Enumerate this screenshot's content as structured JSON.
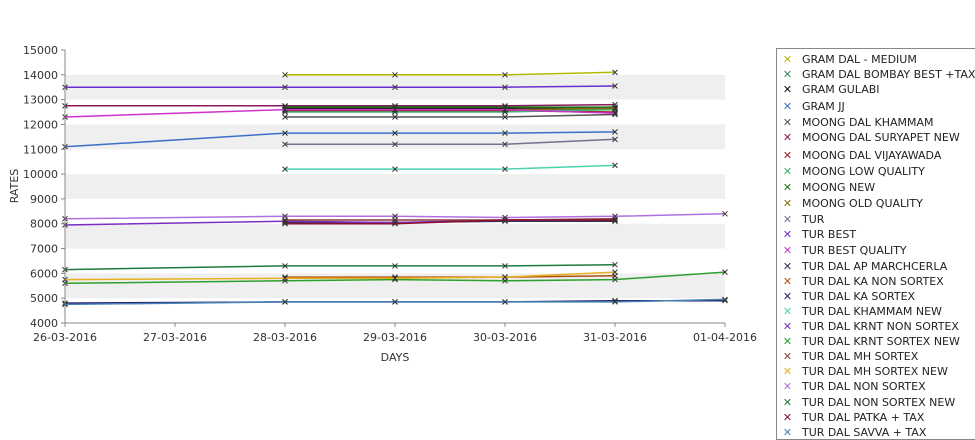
{
  "chart_data": {
    "type": "line",
    "xlabel": "DAYS",
    "ylabel": "RATES",
    "ylim": [
      4000,
      15000
    ],
    "yticks": [
      4000,
      5000,
      6000,
      7000,
      8000,
      9000,
      10000,
      11000,
      12000,
      13000,
      14000,
      15000
    ],
    "categories": [
      "26-03-2016",
      "27-03-2016",
      "28-03-2016",
      "29-03-2016",
      "30-03-2016",
      "31-03-2016",
      "01-04-2016"
    ],
    "grid": "alternating horizontal bands",
    "legend_position": "right",
    "series": [
      {
        "name": "GRAM DAL - MEDIUM",
        "color": "#b5b800",
        "values": [
          null,
          null,
          14000,
          14000,
          14000,
          14100,
          null
        ]
      },
      {
        "name": "GRAM DAL BOMBAY BEST +TAX",
        "color": "#2e8b57",
        "values": [
          null,
          null,
          12550,
          12550,
          12550,
          12600,
          null
        ]
      },
      {
        "name": "GRAM GULABI",
        "color": "#111111",
        "values": [
          null,
          null,
          12650,
          12650,
          12650,
          12700,
          null
        ]
      },
      {
        "name": "GRAM JJ",
        "color": "#3b6fc6",
        "values": [
          11100,
          null,
          11650,
          11650,
          11650,
          11700,
          null
        ]
      },
      {
        "name": "MOONG DAL KHAMMAM",
        "color": "#555555",
        "values": [
          null,
          null,
          12300,
          12300,
          12300,
          12400,
          null
        ]
      },
      {
        "name": "MOONG DAL SURYAPET NEW",
        "color": "#8a1a5a",
        "values": [
          12750,
          null,
          12750,
          12750,
          12750,
          12800,
          null
        ]
      },
      {
        "name": "MOONG DAL VIJAYAWADA",
        "color": "#a02020",
        "values": [
          null,
          null,
          12550,
          12550,
          12550,
          12500,
          null
        ]
      },
      {
        "name": "MOONG LOW QUALITY",
        "color": "#3cb371",
        "values": [
          null,
          null,
          12500,
          12500,
          12500,
          12600,
          null
        ]
      },
      {
        "name": "MOONG NEW",
        "color": "#1a7a1a",
        "values": [
          null,
          null,
          12700,
          12700,
          12700,
          12700,
          null
        ]
      },
      {
        "name": "MOONG OLD QUALITY",
        "color": "#8b6914",
        "values": [
          null,
          null,
          12600,
          12600,
          12600,
          12650,
          null
        ]
      },
      {
        "name": "TUR",
        "color": "#707090",
        "values": [
          null,
          null,
          11200,
          11200,
          11200,
          11400,
          null
        ]
      },
      {
        "name": "TUR BEST",
        "color": "#6a2fd0",
        "values": [
          13500,
          null,
          13500,
          13500,
          13500,
          13550,
          null
        ]
      },
      {
        "name": "TUR BEST QUALITY",
        "color": "#cc33cc",
        "values": [
          12300,
          null,
          12600,
          12600,
          12600,
          12450,
          null
        ]
      },
      {
        "name": "TUR DAL AP MARCHCERLA",
        "color": "#333355",
        "values": [
          null,
          null,
          8050,
          8050,
          8100,
          8100,
          null
        ]
      },
      {
        "name": "TUR DAL KA NON SORTEX",
        "color": "#b05010",
        "values": [
          null,
          null,
          5850,
          5850,
          5850,
          5900,
          null
        ]
      },
      {
        "name": "TUR DAL KA SORTEX",
        "color": "#2a1a6a",
        "values": [
          4800,
          null,
          4850,
          4850,
          4850,
          4900,
          4900
        ]
      },
      {
        "name": "TUR DAL KHAMMAM NEW",
        "color": "#4dd2b0",
        "values": [
          null,
          null,
          10200,
          10200,
          10200,
          10350,
          null
        ]
      },
      {
        "name": "TUR DAL KRNT NON SORTEX",
        "color": "#7b2fc0",
        "values": [
          7950,
          null,
          8100,
          8050,
          8150,
          8150,
          null
        ]
      },
      {
        "name": "TUR DAL KRNT SORTEX NEW",
        "color": "#2ca02c",
        "values": [
          5600,
          null,
          5700,
          5750,
          5700,
          5750,
          6050
        ]
      },
      {
        "name": "TUR DAL MH SORTEX",
        "color": "#8b3a3a",
        "values": [
          null,
          null,
          8150,
          8150,
          8150,
          8200,
          null
        ]
      },
      {
        "name": "TUR DAL MH SORTEX NEW",
        "color": "#e8b020",
        "values": [
          5750,
          null,
          5800,
          5800,
          5850,
          6050,
          null
        ]
      },
      {
        "name": "TUR DAL NON SORTEX",
        "color": "#b070e0",
        "values": [
          8200,
          null,
          8300,
          8300,
          8250,
          8300,
          8400
        ]
      },
      {
        "name": "TUR DAL NON SORTEX NEW",
        "color": "#1e7a3a",
        "values": [
          6150,
          null,
          6300,
          6300,
          6300,
          6350,
          null
        ]
      },
      {
        "name": "TUR DAL PATKA + TAX",
        "color": "#8b1030",
        "values": [
          null,
          null,
          8000,
          8000,
          8150,
          8150,
          null
        ]
      },
      {
        "name": "TUR DAL SAVVA + TAX",
        "color": "#4682b4",
        "values": [
          4750,
          null,
          4850,
          4850,
          4850,
          4850,
          4950
        ]
      }
    ]
  }
}
